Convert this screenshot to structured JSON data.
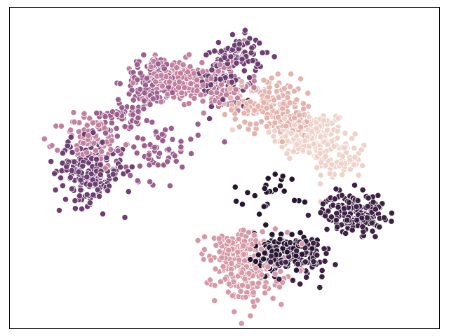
{
  "chart_data": {
    "type": "scatter",
    "title": "",
    "xlabel": "",
    "ylabel": "",
    "xlim": [
      0,
      1
    ],
    "ylim": [
      0,
      1
    ],
    "grid": false,
    "legend": "none",
    "axis_ticks": "none",
    "marker": "circle",
    "series": [
      {
        "color": "#eed3cb",
        "clusters": [
          {
            "cx": 0.7,
            "cy": 0.6,
            "sx": 0.045,
            "sy": 0.04,
            "n": 160
          },
          {
            "cx": 0.77,
            "cy": 0.52,
            "sx": 0.03,
            "sy": 0.03,
            "n": 70
          }
        ]
      },
      {
        "color": "#e3b3ad",
        "clusters": [
          {
            "cx": 0.6,
            "cy": 0.7,
            "sx": 0.04,
            "sy": 0.04,
            "n": 150
          },
          {
            "cx": 0.655,
            "cy": 0.64,
            "sx": 0.025,
            "sy": 0.025,
            "n": 50
          }
        ]
      },
      {
        "color": "#d59aa6",
        "clusters": [
          {
            "cx": 0.56,
            "cy": 0.19,
            "sx": 0.04,
            "sy": 0.055,
            "n": 220
          },
          {
            "cx": 0.51,
            "cy": 0.24,
            "sx": 0.03,
            "sy": 0.03,
            "n": 50
          }
        ]
      },
      {
        "color": "#c2819f",
        "clusters": [
          {
            "cx": 0.38,
            "cy": 0.78,
            "sx": 0.04,
            "sy": 0.03,
            "n": 150
          },
          {
            "cx": 0.48,
            "cy": 0.76,
            "sx": 0.04,
            "sy": 0.04,
            "n": 110
          },
          {
            "cx": 0.19,
            "cy": 0.58,
            "sx": 0.035,
            "sy": 0.045,
            "n": 90
          }
        ]
      },
      {
        "color": "#9c5f8e",
        "clusters": [
          {
            "cx": 0.33,
            "cy": 0.77,
            "sx": 0.03,
            "sy": 0.04,
            "n": 100
          },
          {
            "cx": 0.27,
            "cy": 0.67,
            "sx": 0.03,
            "sy": 0.02,
            "n": 50
          },
          {
            "cx": 0.34,
            "cy": 0.56,
            "sx": 0.05,
            "sy": 0.05,
            "n": 70
          }
        ]
      },
      {
        "color": "#6e3f72",
        "clusters": [
          {
            "cx": 0.185,
            "cy": 0.49,
            "sx": 0.04,
            "sy": 0.05,
            "n": 200
          },
          {
            "cx": 0.53,
            "cy": 0.85,
            "sx": 0.03,
            "sy": 0.03,
            "n": 90
          },
          {
            "cx": 0.5,
            "cy": 0.76,
            "sx": 0.03,
            "sy": 0.04,
            "n": 50
          }
        ]
      },
      {
        "color": "#3d2244",
        "clusters": [
          {
            "cx": 0.8,
            "cy": 0.36,
            "sx": 0.035,
            "sy": 0.03,
            "n": 180
          },
          {
            "cx": 0.67,
            "cy": 0.22,
            "sx": 0.04,
            "sy": 0.035,
            "n": 100
          }
        ]
      },
      {
        "color": "#271630",
        "clusters": [
          {
            "cx": 0.63,
            "cy": 0.24,
            "sx": 0.03,
            "sy": 0.03,
            "n": 110
          },
          {
            "cx": 0.62,
            "cy": 0.43,
            "sx": 0.05,
            "sy": 0.03,
            "n": 25
          }
        ]
      }
    ]
  }
}
